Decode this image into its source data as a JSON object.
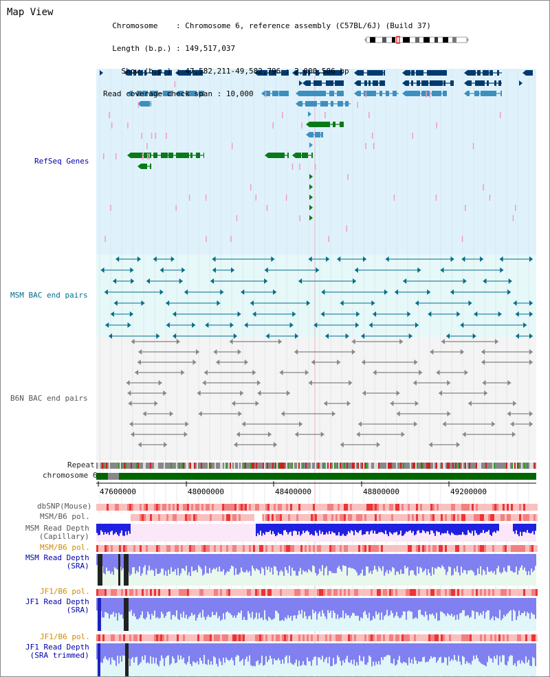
{
  "header": {
    "title": "Map View",
    "chromosome_key": "Chromosome",
    "chromosome_value": "Chromosome 6, reference assembly (C57BL/6J) (Build 37)",
    "length_key": "Length (b.p.)",
    "length_value": "149,517,037",
    "show_key": "Show (b.p.)",
    "show_value": "47,582,211-49,582,796 : 2,000,586 bp",
    "span_key": "Read coverage check span",
    "span_value": "10,000"
  },
  "tracks": {
    "refseq": "RefSeq Genes",
    "msm_bac": "MSM BAC end pairs",
    "b6n_bac": "B6N BAC end pairs",
    "repeat": "Repeat",
    "chromosome": "chromosome 6",
    "dbsnp": "dbSNP(Mouse)",
    "msm_pol_1": "MSM/B6 pol.",
    "msm_depth_cap_1": "MSM Read Depth",
    "msm_depth_cap_2": "(Capillary)",
    "msm_pol_2": "MSM/B6 pol.",
    "msm_depth_sra_1": "MSM Read Depth",
    "msm_depth_sra_2": "(SRA)",
    "jf1_pol_1": "JF1/B6 pol.",
    "jf1_depth_sra_1": "JF1 Read Depth",
    "jf1_depth_sra_2": "(SRA)",
    "jf1_pol_2": "JF1/B6 pol.",
    "jf1_depth_trim_1": "JF1 Read Depth",
    "jf1_depth_trim_2": "(SRA trimmed)"
  },
  "ruler": {
    "ticks": [
      "47600000",
      "48000000",
      "48400000",
      "48800000",
      "49200000"
    ]
  },
  "colors": {
    "refseq_bg": "#dff2fb",
    "gene_dark": "#003a6e",
    "gene_mid": "#3d8fbf",
    "gene_green": "#0a7a18",
    "gene_pink": "#f49ac1",
    "msm_bac_bg": "#e6f8f8",
    "msm_bac": "#006d8a",
    "b6n_bac_bg": "#f4f4f4",
    "b6n_bac": "#666666",
    "chromosome": "#006600",
    "depth_blue": "#2020e0",
    "depth_light": "#8080f0",
    "pol_red": "#ee3333",
    "pol_pink": "#f9c0c0"
  }
}
